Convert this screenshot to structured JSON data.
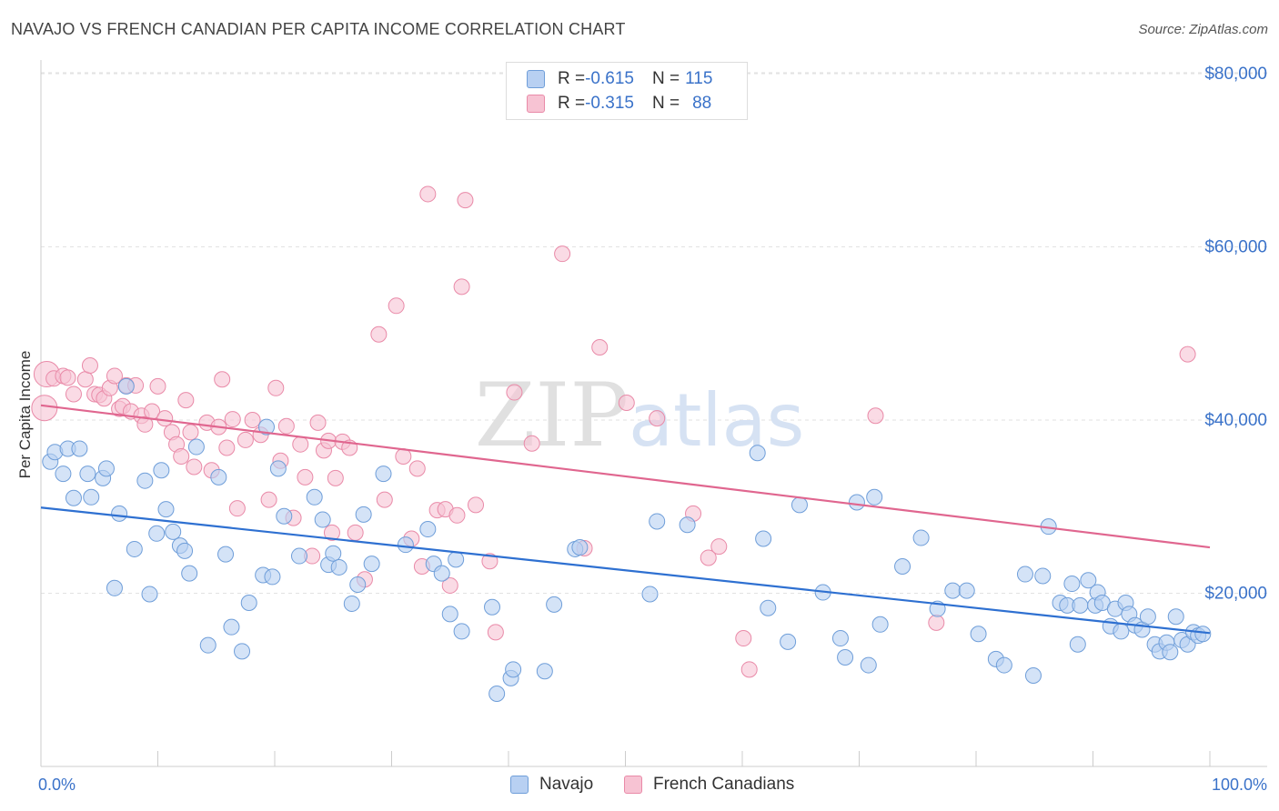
{
  "title": "NAVAJO VS FRENCH CANADIAN PER CAPITA INCOME CORRELATION CHART",
  "source": "Source: ZipAtlas.com",
  "watermark": "ZIPatlas",
  "colors": {
    "navajo_fill": "#b8d0f2",
    "navajo_stroke": "#6f9ed9",
    "navajo_line": "#2e70d1",
    "french_fill": "#f7c3d3",
    "french_stroke": "#e98aa8",
    "french_line": "#e0668f",
    "axis_text": "#3a72c9"
  },
  "legend_top": {
    "rows": [
      {
        "r_label": "R = ",
        "r_value": "-0.615",
        "n_label": "N = ",
        "n_value": "115"
      },
      {
        "r_label": "R = ",
        "r_value": "-0.315",
        "n_label": "N = ",
        "n_value": "88"
      }
    ]
  },
  "legend_bottom": [
    "Navajo",
    "French Canadians"
  ],
  "chart_data": {
    "type": "scatter",
    "title": "NAVAJO VS FRENCH CANADIAN PER CAPITA INCOME CORRELATION CHART",
    "xlabel": "",
    "ylabel": "Per Capita Income",
    "xlim": [
      0,
      100
    ],
    "ylim": [
      0,
      82000
    ],
    "x_tick_labels": [
      "0.0%",
      "100.0%"
    ],
    "y_ticks": [
      20000,
      40000,
      60000,
      80000
    ],
    "y_tick_labels": [
      "$20,000",
      "$40,000",
      "$60,000",
      "$80,000"
    ],
    "grid": true,
    "legend_position": "top-center",
    "series": [
      {
        "name": "Navajo",
        "r": -0.615,
        "n": 115,
        "trend": [
          [
            0,
            29900
          ],
          [
            100,
            15400
          ]
        ],
        "points": [
          [
            0.8,
            35200
          ],
          [
            1.2,
            36300
          ],
          [
            1.9,
            33800
          ],
          [
            2.3,
            36700
          ],
          [
            2.8,
            31000
          ],
          [
            3.3,
            36700
          ],
          [
            4.0,
            33800
          ],
          [
            4.3,
            31100
          ],
          [
            5.3,
            33300
          ],
          [
            5.6,
            34400
          ],
          [
            6.3,
            20600
          ],
          [
            6.7,
            29200
          ],
          [
            7.3,
            43900
          ],
          [
            8.0,
            25100
          ],
          [
            8.9,
            33000
          ],
          [
            9.3,
            19900
          ],
          [
            9.9,
            26900
          ],
          [
            10.3,
            34200
          ],
          [
            10.7,
            29700
          ],
          [
            11.3,
            27100
          ],
          [
            11.9,
            25500
          ],
          [
            12.3,
            24900
          ],
          [
            12.7,
            22300
          ],
          [
            13.3,
            36900
          ],
          [
            14.3,
            14000
          ],
          [
            15.2,
            33400
          ],
          [
            15.8,
            24500
          ],
          [
            16.3,
            16100
          ],
          [
            17.2,
            13300
          ],
          [
            17.8,
            18900
          ],
          [
            19.0,
            22100
          ],
          [
            19.3,
            39200
          ],
          [
            19.8,
            21900
          ],
          [
            20.3,
            34400
          ],
          [
            20.8,
            28900
          ],
          [
            22.1,
            24300
          ],
          [
            23.4,
            31100
          ],
          [
            24.1,
            28500
          ],
          [
            24.6,
            23300
          ],
          [
            25.0,
            24600
          ],
          [
            25.5,
            23000
          ],
          [
            26.6,
            18800
          ],
          [
            27.1,
            21000
          ],
          [
            27.6,
            29100
          ],
          [
            28.3,
            23400
          ],
          [
            29.3,
            33800
          ],
          [
            31.2,
            25600
          ],
          [
            33.1,
            27400
          ],
          [
            33.6,
            23400
          ],
          [
            34.3,
            22300
          ],
          [
            35.0,
            17600
          ],
          [
            35.5,
            23900
          ],
          [
            36.0,
            15600
          ],
          [
            38.6,
            18400
          ],
          [
            39.0,
            8400
          ],
          [
            40.2,
            10200
          ],
          [
            40.4,
            11200
          ],
          [
            43.1,
            11000
          ],
          [
            43.9,
            18700
          ],
          [
            45.7,
            25100
          ],
          [
            46.1,
            25300
          ],
          [
            52.1,
            19900
          ],
          [
            52.7,
            28300
          ],
          [
            55.3,
            27900
          ],
          [
            61.3,
            36200
          ],
          [
            61.8,
            26300
          ],
          [
            62.2,
            18300
          ],
          [
            63.9,
            14400
          ],
          [
            64.9,
            30200
          ],
          [
            66.9,
            20100
          ],
          [
            68.4,
            14800
          ],
          [
            68.8,
            12600
          ],
          [
            69.8,
            30500
          ],
          [
            70.8,
            11700
          ],
          [
            71.3,
            31100
          ],
          [
            71.8,
            16400
          ],
          [
            73.7,
            23100
          ],
          [
            75.3,
            26400
          ],
          [
            76.7,
            18200
          ],
          [
            78.0,
            20300
          ],
          [
            79.2,
            20300
          ],
          [
            80.2,
            15300
          ],
          [
            81.7,
            12400
          ],
          [
            82.4,
            11700
          ],
          [
            84.2,
            22200
          ],
          [
            84.9,
            10500
          ],
          [
            85.7,
            22000
          ],
          [
            86.2,
            27700
          ],
          [
            87.2,
            18900
          ],
          [
            87.8,
            18600
          ],
          [
            88.2,
            21100
          ],
          [
            88.7,
            14100
          ],
          [
            88.9,
            18600
          ],
          [
            89.6,
            21500
          ],
          [
            90.2,
            18600
          ],
          [
            90.4,
            20100
          ],
          [
            90.8,
            18900
          ],
          [
            91.5,
            16200
          ],
          [
            91.9,
            18200
          ],
          [
            92.4,
            15600
          ],
          [
            92.8,
            18900
          ],
          [
            93.1,
            17600
          ],
          [
            93.6,
            16300
          ],
          [
            94.2,
            15800
          ],
          [
            94.7,
            17300
          ],
          [
            95.3,
            14100
          ],
          [
            95.7,
            13300
          ],
          [
            96.3,
            14300
          ],
          [
            96.6,
            13200
          ],
          [
            97.1,
            17300
          ],
          [
            97.6,
            14600
          ],
          [
            98.1,
            14100
          ],
          [
            98.6,
            15500
          ],
          [
            99.0,
            15100
          ],
          [
            99.4,
            15300
          ]
        ]
      },
      {
        "name": "French Canadians",
        "r": -0.315,
        "n": 88,
        "trend": [
          [
            0,
            41700
          ],
          [
            100,
            25300
          ]
        ],
        "points": [
          [
            0.3,
            41400
          ],
          [
            0.5,
            45300
          ],
          [
            1.1,
            44800
          ],
          [
            1.9,
            45100
          ],
          [
            2.3,
            44900
          ],
          [
            2.8,
            43000
          ],
          [
            3.8,
            44700
          ],
          [
            4.2,
            46300
          ],
          [
            4.6,
            43000
          ],
          [
            5.0,
            42900
          ],
          [
            5.4,
            42500
          ],
          [
            5.9,
            43700
          ],
          [
            6.3,
            45100
          ],
          [
            6.7,
            41300
          ],
          [
            7.0,
            41600
          ],
          [
            7.3,
            44000
          ],
          [
            7.7,
            41000
          ],
          [
            8.1,
            44000
          ],
          [
            8.6,
            40500
          ],
          [
            8.9,
            39500
          ],
          [
            9.5,
            41000
          ],
          [
            10.0,
            43900
          ],
          [
            10.6,
            40200
          ],
          [
            11.2,
            38600
          ],
          [
            11.6,
            37200
          ],
          [
            12.0,
            35800
          ],
          [
            12.4,
            42300
          ],
          [
            12.8,
            38600
          ],
          [
            13.1,
            34600
          ],
          [
            14.2,
            39700
          ],
          [
            14.6,
            34200
          ],
          [
            15.2,
            39200
          ],
          [
            15.5,
            44700
          ],
          [
            15.9,
            36800
          ],
          [
            16.4,
            40100
          ],
          [
            16.8,
            29800
          ],
          [
            17.5,
            37700
          ],
          [
            18.1,
            40000
          ],
          [
            18.8,
            38300
          ],
          [
            19.5,
            30800
          ],
          [
            20.1,
            43700
          ],
          [
            20.5,
            35300
          ],
          [
            21.0,
            39300
          ],
          [
            21.6,
            28700
          ],
          [
            22.2,
            37200
          ],
          [
            22.6,
            33400
          ],
          [
            23.2,
            24300
          ],
          [
            23.7,
            39700
          ],
          [
            24.2,
            36500
          ],
          [
            24.6,
            37600
          ],
          [
            25.2,
            33300
          ],
          [
            25.8,
            37500
          ],
          [
            26.4,
            36800
          ],
          [
            26.9,
            27000
          ],
          [
            27.7,
            21600
          ],
          [
            28.9,
            49900
          ],
          [
            29.4,
            30800
          ],
          [
            30.4,
            53200
          ],
          [
            31.0,
            35800
          ],
          [
            31.7,
            26300
          ],
          [
            32.2,
            34400
          ],
          [
            32.6,
            23100
          ],
          [
            33.1,
            66100
          ],
          [
            33.9,
            29600
          ],
          [
            34.6,
            29700
          ],
          [
            35.0,
            20900
          ],
          [
            35.6,
            29000
          ],
          [
            36.0,
            55400
          ],
          [
            36.3,
            65400
          ],
          [
            37.2,
            30200
          ],
          [
            38.4,
            23700
          ],
          [
            38.9,
            15500
          ],
          [
            40.5,
            43200
          ],
          [
            42.0,
            37300
          ],
          [
            44.6,
            59200
          ],
          [
            46.5,
            25200
          ],
          [
            47.8,
            48400
          ],
          [
            50.1,
            42000
          ],
          [
            52.7,
            40200
          ],
          [
            55.8,
            29200
          ],
          [
            57.1,
            24100
          ],
          [
            58.0,
            25400
          ],
          [
            60.1,
            14800
          ],
          [
            60.6,
            11200
          ],
          [
            71.4,
            40500
          ],
          [
            76.6,
            16600
          ],
          [
            98.1,
            47600
          ],
          [
            24.9,
            27000
          ]
        ]
      }
    ]
  }
}
